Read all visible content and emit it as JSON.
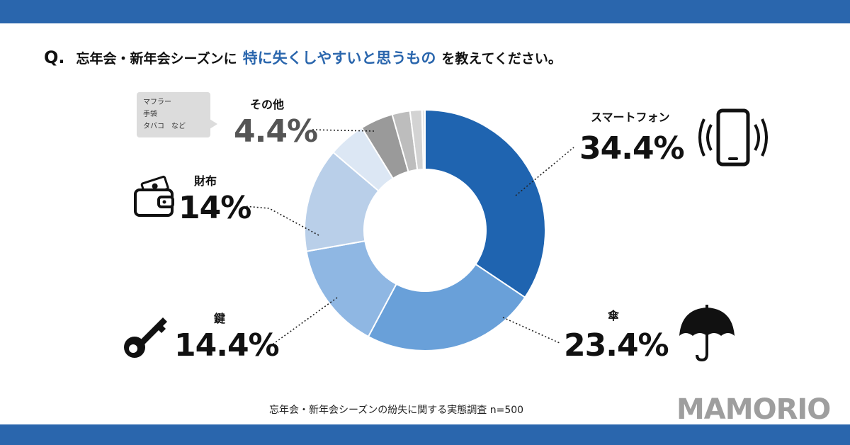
{
  "question": {
    "prefix": "Q.",
    "before": "忘年会・新年会シーズンに",
    "highlight": "特に失くしやすいと思うもの",
    "after": "を教えてください。"
  },
  "chart_data": {
    "type": "pie",
    "donut": true,
    "title": "忘年会・新年会シーズンに特に失くしやすいと思うものを教えてください。",
    "slices": [
      {
        "label": "スマートフォン",
        "value": 34.4,
        "display": "34.4%",
        "color": "#1f64b0"
      },
      {
        "label": "傘",
        "value": 23.4,
        "display": "23.4%",
        "color": "#69a0d9"
      },
      {
        "label": "鍵",
        "value": 14.4,
        "display": "14.4%",
        "color": "#8fb7e3"
      },
      {
        "label": "財布",
        "value": 14.0,
        "display": "14%",
        "color": "#b9cfe9"
      },
      {
        "label": "",
        "value": 5.0,
        "display": "",
        "color": "#dce7f4"
      },
      {
        "label": "その他",
        "value": 4.4,
        "display": "4.4%",
        "color": "#9a9a9a"
      },
      {
        "label": "",
        "value": 2.4,
        "display": "",
        "color": "#bdbdbd"
      },
      {
        "label": "",
        "value": 1.6,
        "display": "",
        "color": "#d3d3d3"
      },
      {
        "label": "",
        "value": 0.4,
        "display": "",
        "color": "#e6e6e6"
      }
    ],
    "source": "忘年会・新年会シーズンの紛失に関する実態調査 n=500"
  },
  "note": {
    "lines": [
      "マフラー",
      "手袋",
      "タバコ　など"
    ]
  },
  "brand": "MAMORIO"
}
